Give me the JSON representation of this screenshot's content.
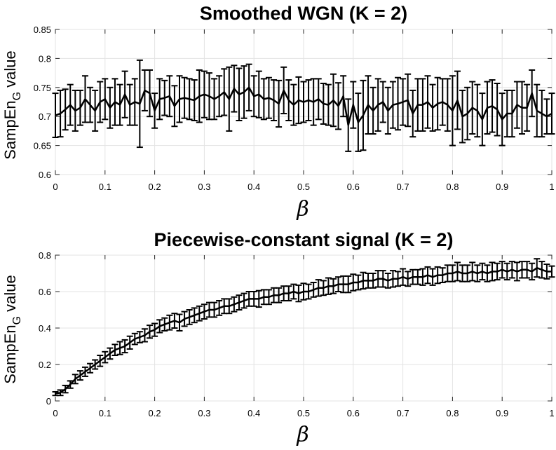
{
  "chart_data": [
    {
      "type": "line",
      "subtype": "errorbar",
      "title": "Smoothed WGN (K = 2)",
      "xlabel": "β",
      "ylabel_main": "SampEn",
      "ylabel_sub": "G",
      "ylabel_tail": " value",
      "xlim": [
        0,
        1
      ],
      "ylim": [
        0.6,
        0.85
      ],
      "xticks": [
        0,
        0.1,
        0.2,
        0.3,
        0.4,
        0.5,
        0.6,
        0.7,
        0.8,
        0.9,
        1
      ],
      "xtick_labels": [
        "0",
        "0.1",
        "0.2",
        "0.3",
        "0.4",
        "0.5",
        "0.6",
        "0.7",
        "0.8",
        "0.9",
        "1"
      ],
      "yticks": [
        0.6,
        0.65,
        0.7,
        0.75,
        0.8,
        0.85
      ],
      "ytick_labels": [
        "0.6",
        "0.65",
        "0.7",
        "0.75",
        "0.8",
        "0.85"
      ],
      "grid": true,
      "x": [
        0,
        0.01,
        0.02,
        0.03,
        0.04,
        0.05,
        0.06,
        0.07,
        0.08,
        0.09,
        0.1,
        0.11,
        0.12,
        0.13,
        0.14,
        0.15,
        0.16,
        0.17,
        0.18,
        0.19,
        0.2,
        0.21,
        0.22,
        0.23,
        0.24,
        0.25,
        0.26,
        0.27,
        0.28,
        0.29,
        0.3,
        0.31,
        0.32,
        0.33,
        0.34,
        0.35,
        0.36,
        0.37,
        0.38,
        0.39,
        0.4,
        0.41,
        0.42,
        0.43,
        0.44,
        0.45,
        0.46,
        0.47,
        0.48,
        0.49,
        0.5,
        0.51,
        0.52,
        0.53,
        0.54,
        0.55,
        0.56,
        0.57,
        0.58,
        0.59,
        0.6,
        0.61,
        0.62,
        0.63,
        0.64,
        0.65,
        0.66,
        0.67,
        0.68,
        0.69,
        0.7,
        0.71,
        0.72,
        0.73,
        0.74,
        0.75,
        0.76,
        0.77,
        0.78,
        0.79,
        0.8,
        0.81,
        0.82,
        0.83,
        0.84,
        0.85,
        0.86,
        0.87,
        0.88,
        0.89,
        0.9,
        0.91,
        0.92,
        0.93,
        0.94,
        0.95,
        0.96,
        0.97,
        0.98,
        0.99,
        1
      ],
      "y": [
        0.702,
        0.705,
        0.712,
        0.72,
        0.71,
        0.715,
        0.73,
        0.72,
        0.71,
        0.725,
        0.73,
        0.715,
        0.725,
        0.72,
        0.738,
        0.72,
        0.725,
        0.722,
        0.745,
        0.74,
        0.71,
        0.73,
        0.732,
        0.735,
        0.718,
        0.73,
        0.732,
        0.73,
        0.728,
        0.735,
        0.738,
        0.735,
        0.73,
        0.735,
        0.742,
        0.73,
        0.748,
        0.738,
        0.742,
        0.75,
        0.735,
        0.738,
        0.73,
        0.732,
        0.728,
        0.722,
        0.745,
        0.728,
        0.72,
        0.728,
        0.725,
        0.728,
        0.725,
        0.73,
        0.722,
        0.72,
        0.728,
        0.718,
        0.735,
        0.685,
        0.72,
        0.69,
        0.702,
        0.72,
        0.71,
        0.72,
        0.725,
        0.71,
        0.72,
        0.722,
        0.725,
        0.728,
        0.705,
        0.72,
        0.72,
        0.725,
        0.715,
        0.722,
        0.725,
        0.72,
        0.71,
        0.728,
        0.7,
        0.705,
        0.715,
        0.71,
        0.695,
        0.715,
        0.718,
        0.712,
        0.695,
        0.705,
        0.705,
        0.72,
        0.715,
        0.715,
        0.74,
        0.71,
        0.705,
        0.7,
        0.705
      ],
      "err": [
        0.038,
        0.04,
        0.035,
        0.035,
        0.035,
        0.03,
        0.04,
        0.03,
        0.035,
        0.035,
        0.035,
        0.035,
        0.04,
        0.035,
        0.04,
        0.035,
        0.04,
        0.075,
        0.035,
        0.04,
        0.03,
        0.035,
        0.03,
        0.035,
        0.035,
        0.04,
        0.035,
        0.035,
        0.035,
        0.045,
        0.04,
        0.04,
        0.035,
        0.035,
        0.04,
        0.055,
        0.04,
        0.045,
        0.045,
        0.04,
        0.035,
        0.04,
        0.035,
        0.035,
        0.035,
        0.04,
        0.04,
        0.035,
        0.035,
        0.04,
        0.035,
        0.035,
        0.04,
        0.035,
        0.035,
        0.035,
        0.045,
        0.04,
        0.035,
        0.045,
        0.04,
        0.05,
        0.06,
        0.05,
        0.04,
        0.045,
        0.035,
        0.04,
        0.04,
        0.045,
        0.04,
        0.045,
        0.04,
        0.045,
        0.045,
        0.045,
        0.04,
        0.045,
        0.04,
        0.045,
        0.06,
        0.05,
        0.045,
        0.045,
        0.045,
        0.045,
        0.045,
        0.045,
        0.045,
        0.045,
        0.045,
        0.04,
        0.04,
        0.04,
        0.045,
        0.04,
        0.04,
        0.045,
        0.04,
        0.03,
        0.035
      ]
    },
    {
      "type": "line",
      "subtype": "errorbar",
      "title": "Piecewise-constant signal (K = 2)",
      "xlabel": "β",
      "ylabel_main": "SampEn",
      "ylabel_sub": "G",
      "ylabel_tail": " value",
      "xlim": [
        0,
        1
      ],
      "ylim": [
        0,
        0.8
      ],
      "xticks": [
        0,
        0.1,
        0.2,
        0.3,
        0.4,
        0.5,
        0.6,
        0.7,
        0.8,
        0.9,
        1
      ],
      "xtick_labels": [
        "0",
        "0.1",
        "0.2",
        "0.3",
        "0.4",
        "0.5",
        "0.6",
        "0.7",
        "0.8",
        "0.9",
        "1"
      ],
      "yticks": [
        0,
        0.2,
        0.4,
        0.6,
        0.8
      ],
      "ytick_labels": [
        "0",
        "0.2",
        "0.4",
        "0.6",
        "0.8"
      ],
      "grid": true,
      "x": [
        0,
        0.01,
        0.02,
        0.03,
        0.04,
        0.05,
        0.06,
        0.07,
        0.08,
        0.09,
        0.1,
        0.11,
        0.12,
        0.13,
        0.14,
        0.15,
        0.16,
        0.17,
        0.18,
        0.19,
        0.2,
        0.21,
        0.22,
        0.23,
        0.24,
        0.25,
        0.26,
        0.27,
        0.28,
        0.29,
        0.3,
        0.31,
        0.32,
        0.33,
        0.34,
        0.35,
        0.36,
        0.37,
        0.38,
        0.39,
        0.4,
        0.41,
        0.42,
        0.43,
        0.44,
        0.45,
        0.46,
        0.47,
        0.48,
        0.49,
        0.5,
        0.51,
        0.52,
        0.53,
        0.54,
        0.55,
        0.56,
        0.57,
        0.58,
        0.59,
        0.6,
        0.61,
        0.62,
        0.63,
        0.64,
        0.65,
        0.66,
        0.67,
        0.68,
        0.69,
        0.7,
        0.71,
        0.72,
        0.73,
        0.74,
        0.75,
        0.76,
        0.77,
        0.78,
        0.79,
        0.8,
        0.81,
        0.82,
        0.83,
        0.84,
        0.85,
        0.86,
        0.87,
        0.88,
        0.89,
        0.9,
        0.91,
        0.92,
        0.93,
        0.94,
        0.95,
        0.96,
        0.97,
        0.98,
        0.99,
        1
      ],
      "y": [
        0.04,
        0.045,
        0.065,
        0.09,
        0.12,
        0.14,
        0.16,
        0.18,
        0.2,
        0.22,
        0.24,
        0.26,
        0.28,
        0.29,
        0.3,
        0.32,
        0.34,
        0.35,
        0.36,
        0.38,
        0.39,
        0.41,
        0.42,
        0.43,
        0.44,
        0.43,
        0.45,
        0.46,
        0.47,
        0.48,
        0.49,
        0.5,
        0.5,
        0.51,
        0.52,
        0.52,
        0.53,
        0.54,
        0.55,
        0.56,
        0.56,
        0.56,
        0.57,
        0.57,
        0.58,
        0.58,
        0.59,
        0.59,
        0.6,
        0.59,
        0.6,
        0.6,
        0.61,
        0.62,
        0.62,
        0.63,
        0.63,
        0.64,
        0.64,
        0.64,
        0.65,
        0.65,
        0.66,
        0.66,
        0.66,
        0.67,
        0.67,
        0.66,
        0.67,
        0.67,
        0.68,
        0.67,
        0.68,
        0.68,
        0.68,
        0.69,
        0.68,
        0.69,
        0.69,
        0.7,
        0.7,
        0.71,
        0.7,
        0.7,
        0.71,
        0.7,
        0.71,
        0.7,
        0.71,
        0.71,
        0.72,
        0.71,
        0.72,
        0.71,
        0.72,
        0.72,
        0.71,
        0.73,
        0.72,
        0.71,
        0.71
      ],
      "err": [
        0.01,
        0.015,
        0.02,
        0.02,
        0.025,
        0.025,
        0.025,
        0.025,
        0.025,
        0.03,
        0.03,
        0.03,
        0.03,
        0.035,
        0.035,
        0.035,
        0.03,
        0.03,
        0.035,
        0.035,
        0.035,
        0.035,
        0.035,
        0.04,
        0.04,
        0.045,
        0.04,
        0.04,
        0.04,
        0.04,
        0.04,
        0.04,
        0.04,
        0.04,
        0.04,
        0.04,
        0.04,
        0.04,
        0.04,
        0.04,
        0.04,
        0.045,
        0.04,
        0.04,
        0.04,
        0.04,
        0.04,
        0.04,
        0.04,
        0.045,
        0.045,
        0.04,
        0.04,
        0.045,
        0.04,
        0.045,
        0.04,
        0.04,
        0.045,
        0.045,
        0.045,
        0.04,
        0.045,
        0.04,
        0.04,
        0.045,
        0.045,
        0.04,
        0.045,
        0.04,
        0.045,
        0.04,
        0.04,
        0.04,
        0.045,
        0.045,
        0.045,
        0.045,
        0.04,
        0.045,
        0.045,
        0.05,
        0.045,
        0.045,
        0.05,
        0.045,
        0.045,
        0.045,
        0.05,
        0.045,
        0.045,
        0.045,
        0.045,
        0.05,
        0.045,
        0.045,
        0.045,
        0.05,
        0.045,
        0.04,
        0.03
      ]
    }
  ]
}
